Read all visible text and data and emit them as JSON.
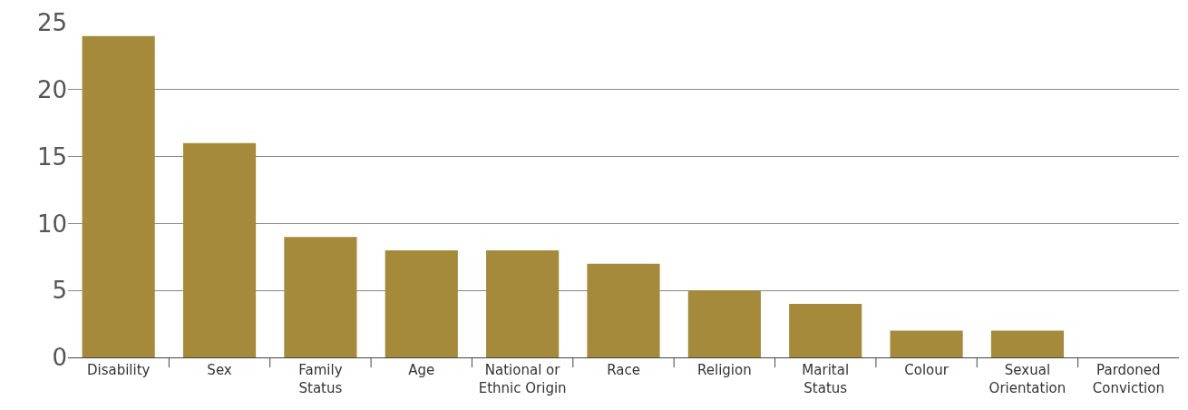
{
  "chart_data": {
    "type": "bar",
    "categories": [
      "Disability",
      "Sex",
      "Family\nStatus",
      "Age",
      "National or\nEthnic Origin",
      "Race",
      "Religion",
      "Marital\nStatus",
      "Colour",
      "Sexual\nOrientation",
      "Pardoned\nConviction"
    ],
    "values": [
      24,
      16,
      9,
      8,
      8,
      7,
      5,
      4,
      2,
      2,
      0
    ],
    "color": "#a68a3c",
    "ylim": [
      0,
      25
    ],
    "yticks": [
      0,
      5,
      10,
      15,
      20,
      25
    ],
    "grid": "y"
  }
}
